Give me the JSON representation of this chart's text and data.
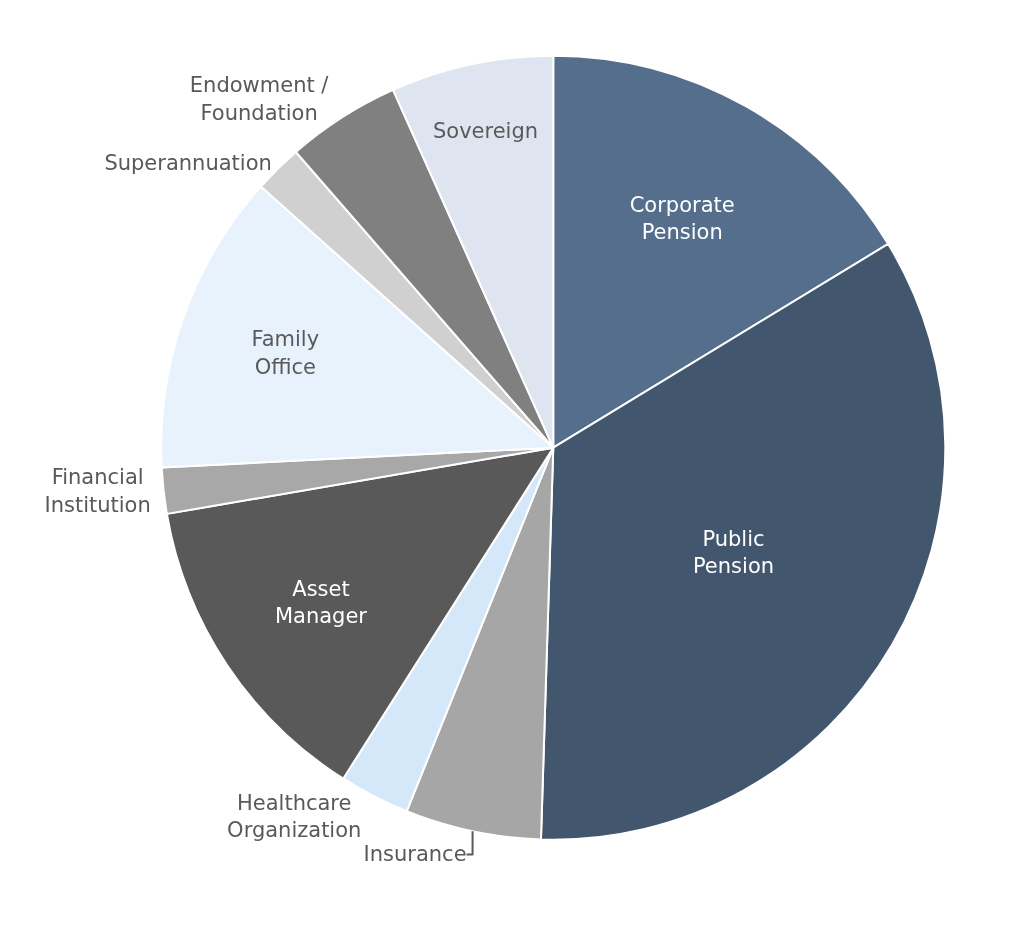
{
  "chart_data": {
    "type": "pie",
    "categories": [
      "Corporate\nPension",
      "Public\nPension",
      "Insurance",
      "Healthcare\nOrganization",
      "Asset\nManager",
      "Financial\nInstitution",
      "Family\nOffice",
      "Superannuation",
      "Endowment /\nFoundation",
      "Sovereign"
    ],
    "values": [
      16.3,
      34.2,
      5.6,
      2.9,
      13.3,
      1.9,
      12.4,
      2.0,
      4.7,
      6.7
    ],
    "colors": [
      "#546e8c",
      "#42566e",
      "#a6a6a6",
      "#d5e8fa",
      "#595959",
      "#a8a8a8",
      "#e8f2fc",
      "#d0d0d0",
      "#808080",
      "#dfe5f0"
    ],
    "legend": false
  }
}
